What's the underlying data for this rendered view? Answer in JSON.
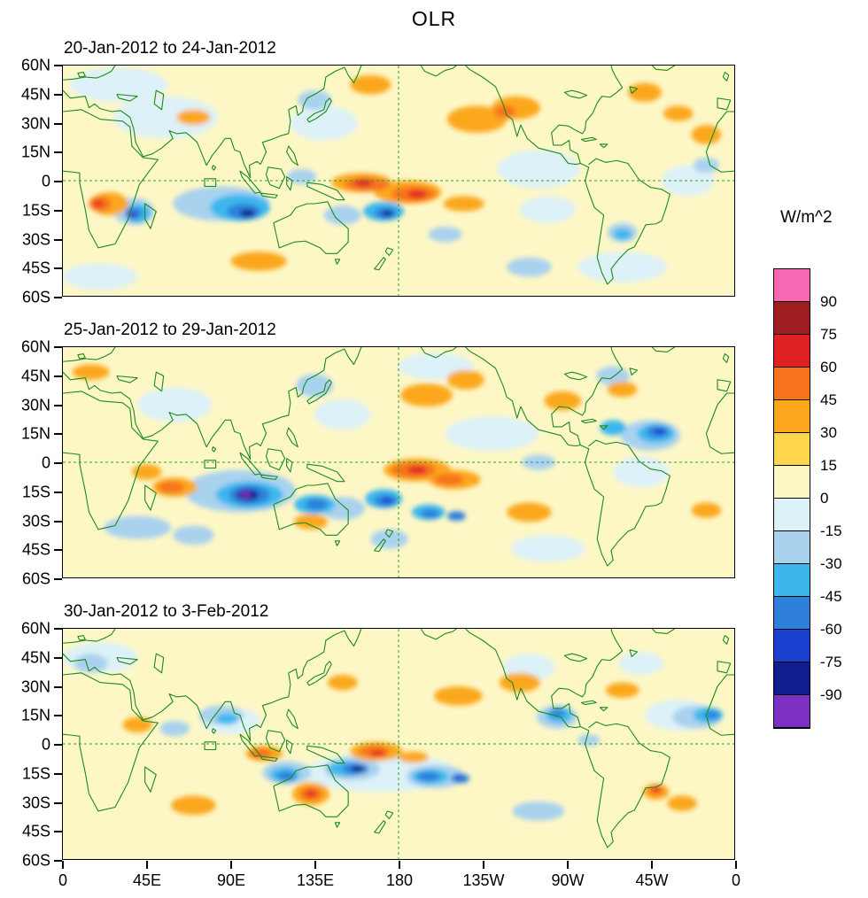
{
  "title": "OLR",
  "axes": {
    "lat_ticks": [
      "60N",
      "45N",
      "30N",
      "15N",
      "0",
      "15S",
      "30S",
      "45S",
      "60S"
    ],
    "lat_values": [
      60,
      45,
      30,
      15,
      0,
      -15,
      -30,
      -45,
      -60
    ],
    "lon_ticks": [
      "0",
      "45E",
      "90E",
      "135E",
      "180",
      "135W",
      "90W",
      "45W",
      "0"
    ],
    "lon_values": [
      0,
      45,
      90,
      135,
      180,
      225,
      270,
      315,
      360
    ]
  },
  "colorbar": {
    "label": "W/m^2",
    "tick_labels": [
      "90",
      "75",
      "60",
      "45",
      "30",
      "15",
      "0",
      "-15",
      "-30",
      "-45",
      "-60",
      "-75",
      "-90"
    ],
    "segments": [
      {
        "min": 90,
        "color": "#F668B2"
      },
      {
        "min": 75,
        "color": "#9F1D20"
      },
      {
        "min": 60,
        "color": "#E02122"
      },
      {
        "min": 45,
        "color": "#F6731C"
      },
      {
        "min": 30,
        "color": "#FBA71B"
      },
      {
        "min": 15,
        "color": "#FDD64B"
      },
      {
        "min": 0,
        "color": "#FDF7C6"
      },
      {
        "min": -15,
        "color": "#DDF1F8"
      },
      {
        "min": -30,
        "color": "#A9D2EE"
      },
      {
        "min": -45,
        "color": "#3BB7ED"
      },
      {
        "min": -60,
        "color": "#2F80DA"
      },
      {
        "min": -75,
        "color": "#1A40D0"
      },
      {
        "min": -90,
        "color": "#111D8C"
      },
      {
        "min": -9999,
        "color": "#7D2FC3"
      }
    ]
  },
  "map": {
    "coastline_color": "#1E8A1E",
    "grid_color": "#2E9B2E",
    "background": "#FDF7C6"
  },
  "chart_data": {
    "type": "heatmap",
    "variable": "OLR anomaly",
    "units": "W/m^2",
    "contour_interval": 15,
    "value_range": [
      -90,
      90
    ],
    "lon_range": [
      0,
      360
    ],
    "lat_range": [
      -60,
      60
    ],
    "grid_lines": {
      "equator_dashed": true,
      "dateline_dashed": true
    },
    "feature_format": [
      "lon_deg_east",
      "lat_deg_north",
      "rx_deg",
      "ry_deg",
      "anomaly_w_per_m2"
    ],
    "panels": [
      {
        "title": "20-Jan-2012 to 24-Jan-2012",
        "anomalies": [
          [
            30,
            50,
            26,
            9,
            -15
          ],
          [
            55,
            33,
            28,
            11,
            -15
          ],
          [
            140,
            30,
            18,
            9,
            -15
          ],
          [
            255,
            6,
            22,
            10,
            -15
          ],
          [
            335,
            0,
            14,
            8,
            -15
          ],
          [
            300,
            -45,
            24,
            8,
            -15
          ],
          [
            20,
            -50,
            20,
            7,
            -15
          ],
          [
            260,
            -15,
            15,
            7,
            -15
          ],
          [
            85,
            -12,
            26,
            9,
            -30
          ],
          [
            150,
            -18,
            10,
            5,
            -30
          ],
          [
            205,
            -28,
            9,
            4,
            -30
          ],
          [
            250,
            -45,
            12,
            5,
            -30
          ],
          [
            128,
            2,
            8,
            4,
            -30
          ],
          [
            38,
            -16,
            11,
            7,
            -30
          ],
          [
            135,
            42,
            9,
            5,
            -30
          ],
          [
            300,
            -27,
            8,
            5,
            -30
          ],
          [
            345,
            8,
            7,
            4,
            -30
          ],
          [
            95,
            -14,
            16,
            7,
            -45
          ],
          [
            172,
            -16,
            11,
            5,
            -45
          ],
          [
            40,
            -17,
            7,
            5,
            -45
          ],
          [
            300,
            -28,
            5,
            3,
            -45
          ],
          [
            97,
            -16,
            9,
            4,
            -60
          ],
          [
            173,
            -17,
            6,
            3,
            -60
          ],
          [
            38,
            -17,
            4.5,
            3,
            -60
          ],
          [
            99,
            -17,
            4,
            2,
            -80
          ],
          [
            174,
            -17,
            3,
            1.5,
            -80
          ],
          [
            37,
            -18,
            2.5,
            1.8,
            -75
          ],
          [
            36,
            -18,
            1.4,
            1,
            -95
          ],
          [
            222,
            32,
            16,
            7,
            30
          ],
          [
            243,
            38,
            13,
            6,
            30
          ],
          [
            165,
            50,
            11,
            5,
            30
          ],
          [
            312,
            46,
            9,
            5,
            30
          ],
          [
            345,
            24,
            8,
            5,
            30
          ],
          [
            105,
            -42,
            15,
            5,
            30
          ],
          [
            215,
            -12,
            11,
            4,
            30
          ],
          [
            25,
            -12,
            10,
            6,
            30
          ],
          [
            185,
            -6,
            18,
            6,
            30
          ],
          [
            160,
            -1,
            16,
            5,
            30
          ],
          [
            70,
            33,
            9,
            4,
            30
          ],
          [
            330,
            35,
            8,
            4,
            30
          ],
          [
            163,
            -2,
            12,
            3.5,
            45
          ],
          [
            188,
            -7,
            12,
            4,
            45
          ],
          [
            20,
            -12,
            6,
            4,
            45
          ],
          [
            237,
            36,
            6,
            3,
            45
          ],
          [
            161,
            -1,
            5,
            2,
            60
          ],
          [
            190,
            -7,
            5,
            2,
            60
          ],
          [
            19,
            -12,
            2.5,
            1.7,
            60
          ]
        ]
      },
      {
        "title": "25-Jan-2012 to 29-Jan-2012",
        "anomalies": [
          [
            230,
            15,
            25,
            9,
            -15
          ],
          [
            150,
            25,
            15,
            8,
            -15
          ],
          [
            60,
            30,
            20,
            9,
            -15
          ],
          [
            310,
            -5,
            15,
            8,
            -15
          ],
          [
            200,
            50,
            20,
            7,
            -15
          ],
          [
            260,
            -45,
            20,
            7,
            -15
          ],
          [
            95,
            -15,
            30,
            11,
            -30
          ],
          [
            150,
            -24,
            12,
            6,
            -30
          ],
          [
            40,
            -34,
            18,
            6,
            -30
          ],
          [
            175,
            -40,
            10,
            5,
            -30
          ],
          [
            315,
            14,
            16,
            8,
            -30
          ],
          [
            135,
            40,
            10,
            6,
            -30
          ],
          [
            70,
            -38,
            11,
            5,
            -30
          ],
          [
            295,
            45,
            9,
            5,
            -30
          ],
          [
            255,
            0,
            9,
            4,
            -30
          ],
          [
            100,
            -17,
            18,
            7,
            -45
          ],
          [
            135,
            -22,
            11,
            5,
            -45
          ],
          [
            172,
            -19,
            10,
            5,
            -45
          ],
          [
            196,
            -26,
            9,
            4,
            -45
          ],
          [
            318,
            15,
            10,
            5,
            -45
          ],
          [
            295,
            18,
            7,
            4,
            -45
          ],
          [
            100,
            -17,
            11,
            5,
            -60
          ],
          [
            136,
            -22,
            6,
            3,
            -60
          ],
          [
            173,
            -20,
            6,
            3,
            -60
          ],
          [
            197,
            -27,
            5,
            2.5,
            -60
          ],
          [
            211,
            -28,
            5,
            2.5,
            -60
          ],
          [
            319,
            16,
            6,
            3,
            -60
          ],
          [
            99,
            -17,
            6,
            3,
            -80
          ],
          [
            174,
            -20,
            3,
            1.5,
            -75
          ],
          [
            320,
            16,
            3,
            1.6,
            -75
          ],
          [
            98,
            -17,
            3,
            1.6,
            -95
          ],
          [
            60,
            -13,
            12,
            5,
            30
          ],
          [
            45,
            -5,
            8,
            4,
            30
          ],
          [
            190,
            -4,
            18,
            6,
            30
          ],
          [
            210,
            -9,
            14,
            5,
            30
          ],
          [
            195,
            35,
            14,
            6,
            30
          ],
          [
            216,
            43,
            10,
            5,
            30
          ],
          [
            268,
            32,
            10,
            5,
            30
          ],
          [
            133,
            -31,
            9,
            4,
            30
          ],
          [
            250,
            -26,
            12,
            5,
            30
          ],
          [
            345,
            -25,
            8,
            4,
            30
          ],
          [
            15,
            47,
            10,
            4,
            30
          ],
          [
            300,
            38,
            8,
            4,
            30
          ],
          [
            58,
            -13,
            7,
            3,
            45
          ],
          [
            188,
            -4,
            12,
            4,
            45
          ],
          [
            207,
            -9,
            8,
            3,
            45
          ],
          [
            190,
            -4,
            5,
            2,
            60
          ]
        ]
      },
      {
        "title": "30-Jan-2012 to 3-Feb-2012",
        "anomalies": [
          [
            20,
            45,
            20,
            8,
            -15
          ],
          [
            250,
            40,
            14,
            7,
            -15
          ],
          [
            170,
            -15,
            42,
            10,
            -15
          ],
          [
            330,
            15,
            18,
            8,
            -15
          ],
          [
            90,
            12,
            16,
            7,
            -15
          ],
          [
            310,
            42,
            12,
            6,
            -15
          ],
          [
            120,
            -15,
            13,
            6,
            -30
          ],
          [
            155,
            -13,
            15,
            6,
            -30
          ],
          [
            200,
            -17,
            16,
            6,
            -30
          ],
          [
            85,
            15,
            12,
            5,
            -30
          ],
          [
            340,
            14,
            13,
            6,
            -30
          ],
          [
            15,
            42,
            9,
            5,
            -30
          ],
          [
            265,
            14,
            11,
            6,
            -30
          ],
          [
            282,
            2,
            6,
            3,
            -30
          ],
          [
            255,
            -35,
            14,
            5,
            -30
          ],
          [
            60,
            8,
            8,
            4,
            -30
          ],
          [
            119,
            -16,
            8,
            4,
            -45
          ],
          [
            152,
            -13,
            10,
            4,
            -45
          ],
          [
            197,
            -17,
            10,
            4,
            -45
          ],
          [
            266,
            15,
            7,
            4,
            -45
          ],
          [
            346,
            15,
            8,
            4,
            -45
          ],
          [
            88,
            13,
            6,
            3,
            -45
          ],
          [
            120,
            -17,
            5,
            2.5,
            -60
          ],
          [
            157,
            -13,
            7,
            3,
            -60
          ],
          [
            196,
            -17,
            6,
            2.5,
            -60
          ],
          [
            213,
            -18,
            5,
            2.5,
            -60
          ],
          [
            265,
            16,
            4,
            2,
            -60
          ],
          [
            348,
            15,
            4,
            2,
            -60
          ],
          [
            158,
            -13,
            3.5,
            1.6,
            -80
          ],
          [
            212,
            -17,
            2.5,
            1.3,
            -75
          ],
          [
            133,
            -26,
            10,
            6,
            30
          ],
          [
            168,
            -4,
            14,
            5,
            30
          ],
          [
            108,
            -5,
            10,
            4,
            30
          ],
          [
            212,
            25,
            13,
            5,
            30
          ],
          [
            245,
            32,
            11,
            5,
            30
          ],
          [
            300,
            28,
            9,
            4,
            30
          ],
          [
            318,
            -25,
            7,
            4,
            30
          ],
          [
            332,
            -31,
            8,
            4,
            30
          ],
          [
            70,
            -32,
            12,
            5,
            30
          ],
          [
            40,
            10,
            8,
            4,
            30
          ],
          [
            150,
            32,
            8,
            4,
            30
          ],
          [
            188,
            -7,
            8,
            3,
            30
          ],
          [
            133,
            -26,
            6,
            3.5,
            45
          ],
          [
            167,
            -4,
            8,
            3,
            45
          ],
          [
            106,
            -5,
            6,
            2.5,
            45
          ],
          [
            318,
            -24,
            4,
            2.5,
            45
          ],
          [
            133,
            -26,
            3,
            1.7,
            60
          ],
          [
            169,
            -5,
            4,
            1.6,
            60
          ],
          [
            318,
            -24,
            2,
            1.2,
            60
          ]
        ]
      }
    ]
  }
}
